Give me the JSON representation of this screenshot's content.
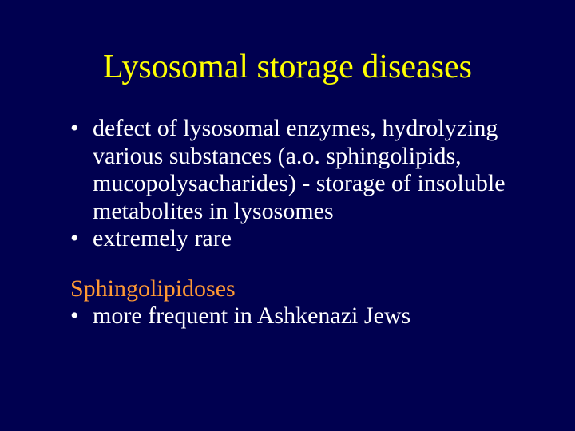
{
  "slide": {
    "background_color": "#000050",
    "title_color": "#ffff00",
    "body_color": "#ffffff",
    "subhead_color": "#ff9933",
    "title_fontsize": 42,
    "body_fontsize": 30,
    "font_family": "Times New Roman",
    "title": "Lysosomal storage diseases",
    "bullets_top": [
      "defect of lysosomal enzymes, hydrolyzing various substances (a.o. sphingolipids, mucopolysacharides) - storage of insoluble metabolites in lysosomes",
      "extremely rare"
    ],
    "subheading": "Sphingolipidoses",
    "bullets_bottom": [
      "more frequent in Ashkenazi Jews"
    ]
  }
}
